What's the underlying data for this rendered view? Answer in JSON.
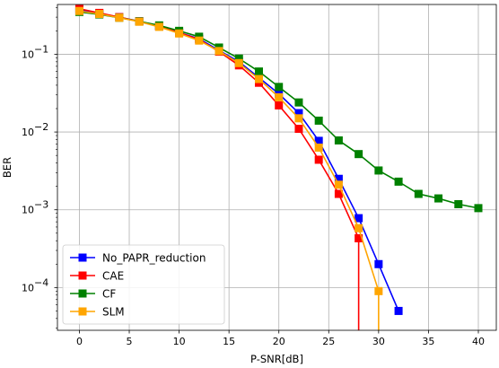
{
  "chart_data": {
    "type": "line",
    "title": "",
    "xlabel": "P-SNR[dB]",
    "ylabel": "BER",
    "xlim": [
      -2.2,
      41.8
    ],
    "ylim_log10": [
      -4.55,
      -0.36
    ],
    "yscale": "log",
    "grid": true,
    "legend_position": "lower-left",
    "x_ticks": [
      0,
      5,
      10,
      15,
      20,
      25,
      30,
      35,
      40
    ],
    "x_tick_labels": [
      "0",
      "5",
      "10",
      "15",
      "20",
      "25",
      "30",
      "35",
      "40"
    ],
    "y_ticks_exp": [
      -1,
      -2,
      -3,
      -4
    ],
    "y_tick_labels": [
      "10",
      "10",
      "10",
      "10"
    ],
    "y_tick_superscripts": [
      "−1",
      "−2",
      "−3",
      "−4"
    ],
    "series": [
      {
        "name": "No_PAPR_reduction",
        "color": "#0000ff",
        "x": [
          0,
          2,
          4,
          6,
          8,
          10,
          12,
          14,
          16,
          18,
          20,
          22,
          24,
          26,
          28,
          30,
          32
        ],
        "y": [
          0.37,
          0.335,
          0.3,
          0.265,
          0.228,
          0.19,
          0.158,
          0.112,
          0.08,
          0.05,
          0.031,
          0.0175,
          0.0077,
          0.0025,
          0.00078,
          0.0002,
          5e-05
        ]
      },
      {
        "name": "CAE",
        "color": "#ff0000",
        "x": [
          0,
          2,
          4,
          6,
          8,
          10,
          12,
          14,
          16,
          18,
          20,
          22,
          24,
          26,
          28,
          28
        ],
        "y": [
          0.385,
          0.34,
          0.3,
          0.265,
          0.228,
          0.19,
          0.155,
          0.108,
          0.072,
          0.043,
          0.022,
          0.011,
          0.0044,
          0.0016,
          0.00043,
          1e-05
        ]
      },
      {
        "name": "CF",
        "color": "#008000",
        "x": [
          0,
          2,
          4,
          6,
          8,
          10,
          12,
          14,
          16,
          18,
          20,
          22,
          24,
          26,
          28,
          30,
          32,
          34,
          36,
          38,
          40
        ],
        "y": [
          0.35,
          0.325,
          0.295,
          0.265,
          0.235,
          0.2,
          0.168,
          0.122,
          0.088,
          0.06,
          0.038,
          0.024,
          0.014,
          0.0078,
          0.0052,
          0.0032,
          0.0023,
          0.0016,
          0.0014,
          0.00118,
          0.00105
        ]
      },
      {
        "name": "SLM",
        "color": "#ffa500",
        "x": [
          0,
          2,
          4,
          6,
          8,
          10,
          12,
          14,
          16,
          18,
          20,
          22,
          24,
          26,
          28,
          30,
          30
        ],
        "y": [
          0.36,
          0.33,
          0.295,
          0.262,
          0.225,
          0.185,
          0.15,
          0.11,
          0.077,
          0.048,
          0.028,
          0.015,
          0.0063,
          0.0021,
          0.00058,
          9e-05,
          1e-05
        ]
      }
    ]
  }
}
